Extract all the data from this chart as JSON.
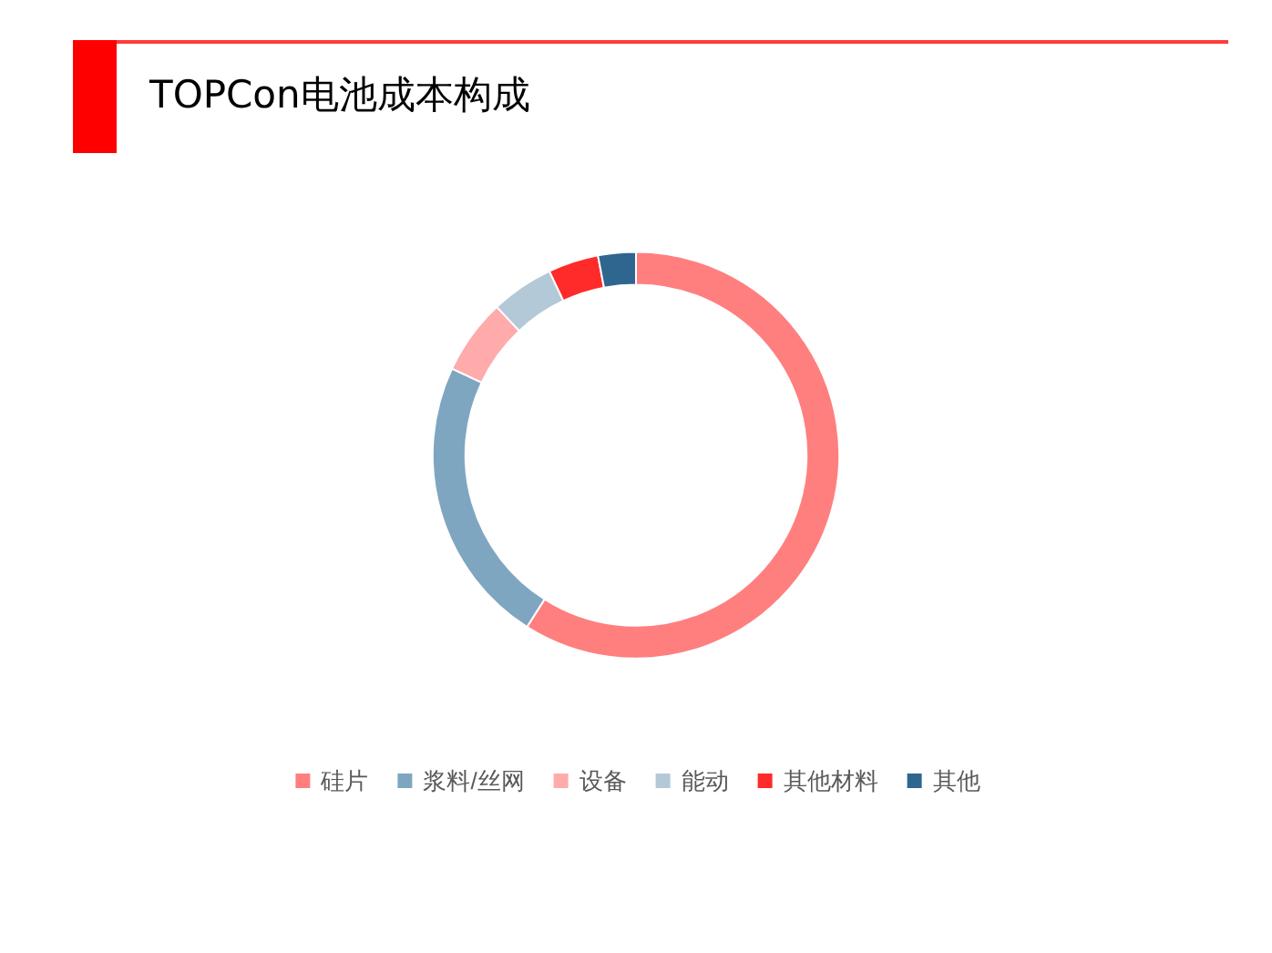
{
  "chart_data": {
    "type": "donut",
    "title": "TOPCon电池成本构成",
    "categories": [
      "硅片",
      "浆料/丝网",
      "设备",
      "能动",
      "其他材料",
      "其他"
    ],
    "values": [
      59,
      23,
      6,
      5,
      4,
      3
    ],
    "colors": [
      "#ff7f7f",
      "#7fa6c0",
      "#ffabab",
      "#b3c9d8",
      "#ff2a2a",
      "#2e6690"
    ],
    "legend": "bottom"
  }
}
